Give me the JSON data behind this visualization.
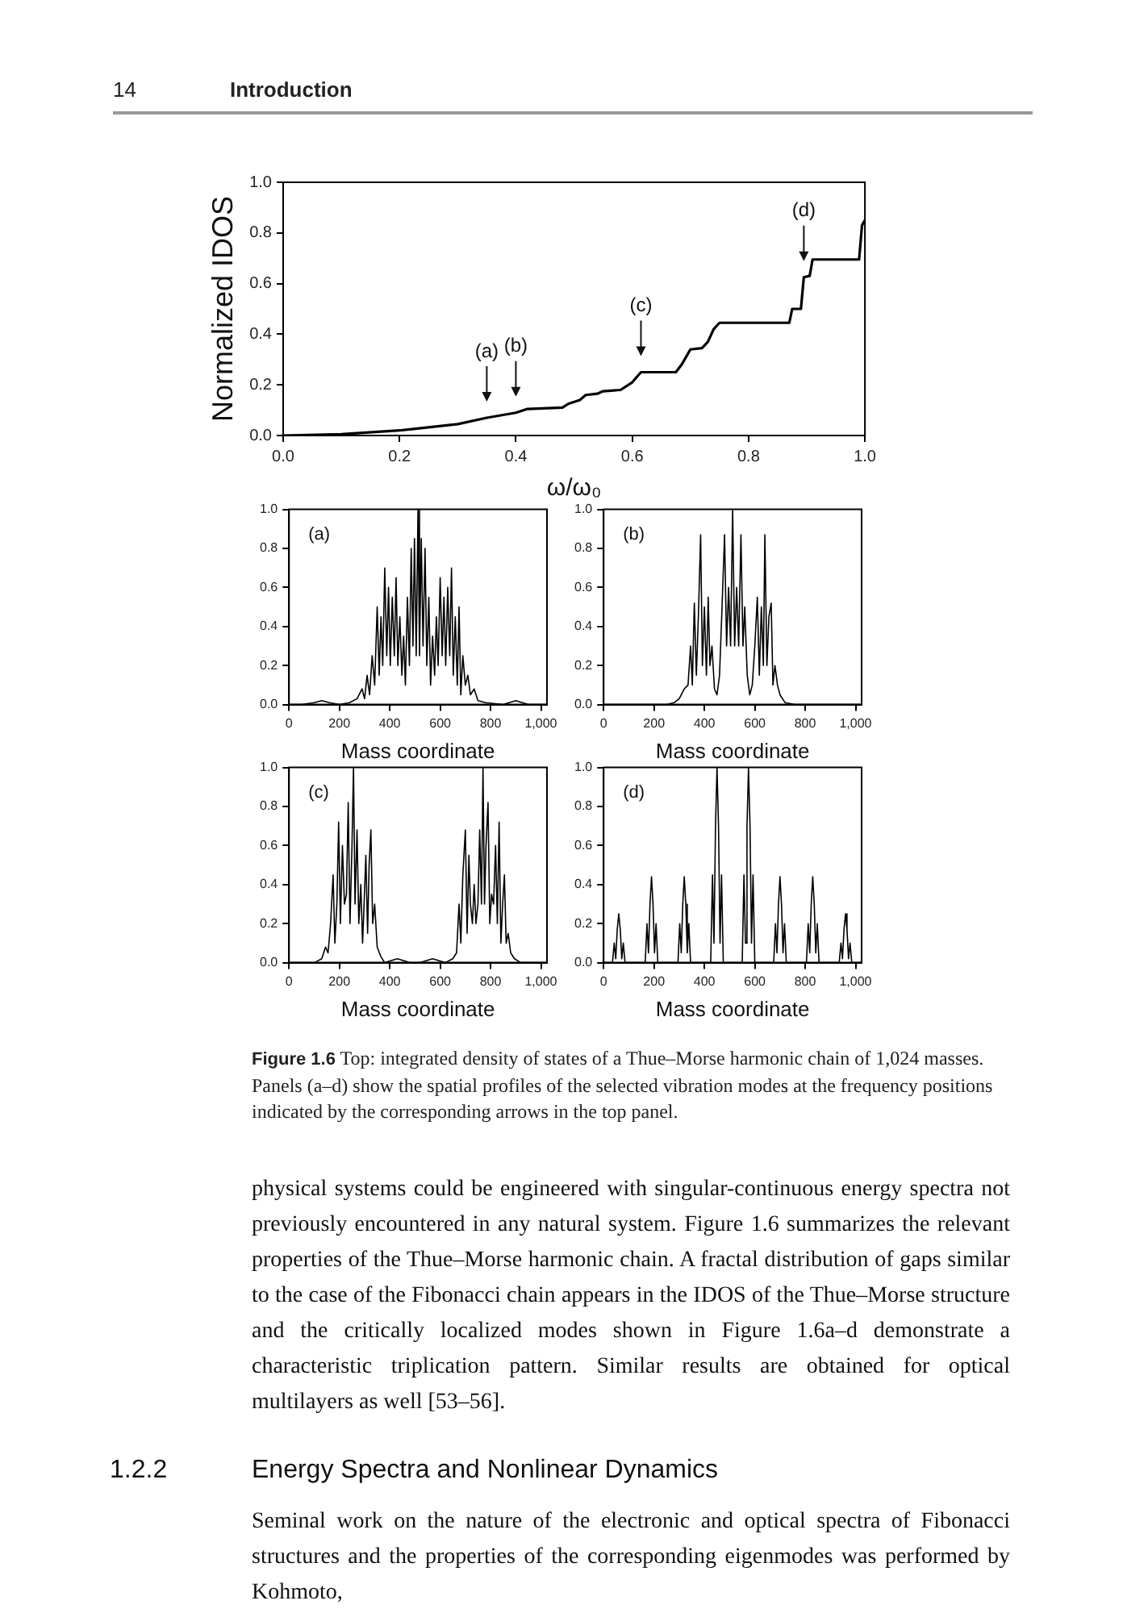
{
  "chart_data": [
    {
      "type": "other",
      "annotations": [
        "14",
        "Introduction"
      ]
    },
    {
      "type": "line",
      "xlabel": "ω/ω₀",
      "ylabel": "Normalized IDOS",
      "xlim": [
        0,
        1
      ],
      "ylim": [
        0,
        1
      ],
      "marker": "none",
      "grid": false,
      "xticks": [
        {
          "value": 0,
          "label": "0.0"
        },
        {
          "value": 0.2,
          "label": "0.2"
        },
        {
          "value": 0.4,
          "label": "0.4"
        },
        {
          "value": 0.6,
          "label": "0.6"
        },
        {
          "value": 0.8,
          "label": "0.8"
        },
        {
          "value": 1,
          "label": "1.0"
        }
      ],
      "yticks": [
        {
          "value": 0,
          "label": "0.0"
        },
        {
          "value": 0.2,
          "label": "0.2"
        },
        {
          "value": 0.4,
          "label": "0.4"
        },
        {
          "value": 0.6,
          "label": "0.6"
        },
        {
          "value": 0.8,
          "label": "0.8"
        },
        {
          "value": 1,
          "label": "1.0"
        }
      ],
      "series": [
        {
          "color": "#000000",
          "x": [
            0,
            0.1,
            0.2,
            0.3,
            0.35,
            0.4,
            0.42,
            0.48,
            0.49,
            0.51,
            0.52,
            0.54,
            0.55,
            0.58,
            0.6,
            0.615,
            0.675,
            0.685,
            0.7,
            0.72,
            0.73,
            0.74,
            0.75,
            0.87,
            0.875,
            0.89,
            0.895,
            0.905,
            0.91,
            0.99,
            0.995,
            1
          ],
          "values": [
            0,
            0.005,
            0.02,
            0.045,
            0.07,
            0.09,
            0.105,
            0.11,
            0.125,
            0.14,
            0.16,
            0.165,
            0.175,
            0.18,
            0.21,
            0.25,
            0.25,
            0.28,
            0.34,
            0.345,
            0.37,
            0.42,
            0.445,
            0.445,
            0.5,
            0.5,
            0.625,
            0.63,
            0.695,
            0.695,
            0.83,
            0.85
          ]
        }
      ],
      "annotations": [
        {
          "text": "(a)",
          "x": 0.35,
          "y": 0.07
        },
        {
          "text": "(b)",
          "x": 0.4,
          "y": 0.09
        },
        {
          "text": "(c)",
          "x": 0.615,
          "y": 0.25
        },
        {
          "text": "(d)",
          "x": 0.895,
          "y": 0.625
        }
      ]
    },
    {
      "type": "line",
      "xlabel": "Mass coordinate",
      "xlim": [
        0,
        1024
      ],
      "ylim": [
        0,
        1
      ],
      "marker": "none",
      "grid": false,
      "xticks": [
        0,
        200,
        400,
        600,
        800,
        {
          "value": 1000,
          "label": "1,000"
        }
      ],
      "yticks": [
        {
          "value": 0,
          "label": "0.0"
        },
        {
          "value": 0.2,
          "label": "0.2"
        },
        {
          "value": 0.4,
          "label": "0.4"
        },
        {
          "value": 0.6,
          "label": "0.6"
        },
        {
          "value": 0.8,
          "label": "0.8"
        },
        {
          "value": 1,
          "label": "1.0"
        }
      ],
      "series": [
        {
          "color": "#000000",
          "x": [
            0,
            50,
            100,
            130,
            160,
            200,
            240,
            270,
            290,
            300,
            310,
            320,
            330,
            340,
            350,
            358,
            365,
            372,
            380,
            388,
            395,
            402,
            410,
            418,
            425,
            432,
            440,
            448,
            455,
            462,
            470,
            478,
            485,
            492,
            498,
            505,
            512,
            518,
            525,
            532,
            540,
            547,
            555,
            562,
            570,
            578,
            585,
            592,
            600,
            608,
            615,
            622,
            630,
            638,
            645,
            652,
            660,
            668,
            675,
            682,
            690,
            700,
            710,
            720,
            735,
            750,
            780,
            850,
            900,
            950,
            1024
          ],
          "values": [
            0,
            0,
            0.01,
            0.02,
            0.01,
            0,
            0.01,
            0.03,
            0.08,
            0.03,
            0.15,
            0.05,
            0.25,
            0.1,
            0.5,
            0.15,
            0.45,
            0.2,
            0.7,
            0.25,
            0.6,
            0.2,
            0.55,
            0.25,
            0.65,
            0.2,
            0.45,
            0.15,
            0.35,
            0.1,
            0.55,
            0.2,
            0.8,
            0.3,
            0.85,
            0.25,
            1.0,
            0.25,
            0.85,
            0.3,
            0.8,
            0.2,
            0.55,
            0.1,
            0.35,
            0.15,
            0.45,
            0.2,
            0.65,
            0.25,
            0.55,
            0.2,
            0.6,
            0.25,
            0.7,
            0.15,
            0.45,
            0.1,
            0.5,
            0.05,
            0.25,
            0.1,
            0.15,
            0.05,
            0.08,
            0.02,
            0.01,
            0,
            0.02,
            0,
            0
          ]
        }
      ],
      "annotations": [
        "(a)"
      ]
    },
    {
      "type": "line",
      "xlabel": "Mass coordinate",
      "xlim": [
        0,
        1024
      ],
      "ylim": [
        0,
        1
      ],
      "marker": "none",
      "grid": false,
      "xticks": [
        0,
        200,
        400,
        600,
        800,
        {
          "value": 1000,
          "label": "1,000"
        }
      ],
      "yticks": [
        {
          "value": 0,
          "label": "0.0"
        },
        {
          "value": 0.2,
          "label": "0.2"
        },
        {
          "value": 0.4,
          "label": "0.4"
        },
        {
          "value": 0.6,
          "label": "0.6"
        },
        {
          "value": 0.8,
          "label": "0.8"
        },
        {
          "value": 1,
          "label": "1.0"
        }
      ],
      "series": [
        {
          "color": "#000000",
          "x": [
            0,
            250,
            280,
            300,
            320,
            335,
            345,
            352,
            360,
            368,
            376,
            385,
            392,
            400,
            408,
            415,
            422,
            430,
            440,
            450,
            460,
            470,
            480,
            488,
            496,
            504,
            512,
            520,
            528,
            536,
            545,
            553,
            560,
            570,
            580,
            590,
            600,
            610,
            618,
            626,
            634,
            640,
            648,
            656,
            665,
            672,
            680,
            690,
            700,
            720,
            760,
            1024
          ],
          "values": [
            0,
            0,
            0.01,
            0.03,
            0.08,
            0.1,
            0.3,
            0.1,
            0.52,
            0.15,
            0.45,
            0.87,
            0.2,
            0.5,
            0.15,
            0.55,
            0.2,
            0.3,
            0.08,
            0.05,
            0.15,
            0.5,
            0.87,
            0.3,
            0.6,
            0.3,
            1.0,
            0.3,
            0.6,
            0.3,
            0.87,
            0.3,
            0.5,
            0.15,
            0.05,
            0.1,
            0.3,
            0.55,
            0.15,
            0.5,
            0.2,
            0.87,
            0.2,
            0.45,
            0.52,
            0.1,
            0.2,
            0.1,
            0.05,
            0.01,
            0,
            0
          ]
        }
      ],
      "annotations": [
        "(b)"
      ]
    },
    {
      "type": "line",
      "xlabel": "Mass coordinate",
      "xlim": [
        0,
        1024
      ],
      "ylim": [
        0,
        1
      ],
      "marker": "none",
      "grid": false,
      "xticks": [
        0,
        200,
        400,
        600,
        800,
        {
          "value": 1000,
          "label": "1,000"
        }
      ],
      "yticks": [
        {
          "value": 0,
          "label": "0.0"
        },
        {
          "value": 0.2,
          "label": "0.2"
        },
        {
          "value": 0.4,
          "label": "0.4"
        },
        {
          "value": 0.6,
          "label": "0.6"
        },
        {
          "value": 0.8,
          "label": "0.8"
        },
        {
          "value": 1,
          "label": "1.0"
        }
      ],
      "series": [
        {
          "color": "#000000",
          "x": [
            0,
            100,
            130,
            145,
            155,
            165,
            175,
            182,
            190,
            197,
            204,
            212,
            220,
            228,
            235,
            242,
            250,
            256,
            262,
            270,
            277,
            285,
            292,
            298,
            305,
            312,
            318,
            325,
            332,
            340,
            350,
            365,
            380,
            430,
            480,
            520,
            570,
            620,
            650,
            665,
            675,
            682,
            690,
            700,
            707,
            714,
            720,
            728,
            735,
            742,
            750,
            757,
            764,
            770,
            776,
            782,
            790,
            797,
            804,
            812,
            820,
            827,
            834,
            841,
            848,
            855,
            862,
            870,
            880,
            895,
            920,
            1024
          ],
          "values": [
            0,
            0,
            0.02,
            0.08,
            0.05,
            0.2,
            0.45,
            0.1,
            0.3,
            0.72,
            0.2,
            0.6,
            0.3,
            0.35,
            0.82,
            0.2,
            0.6,
            1.0,
            0.3,
            0.68,
            0.2,
            0.4,
            0.1,
            0.3,
            0.55,
            0.15,
            0.5,
            0.68,
            0.2,
            0.3,
            0.08,
            0.03,
            0,
            0.02,
            0,
            0,
            0.02,
            0,
            0.02,
            0.05,
            0.3,
            0.1,
            0.45,
            0.68,
            0.15,
            0.55,
            0.3,
            0.2,
            0.4,
            0.2,
            0.3,
            0.68,
            0.3,
            1.0,
            0.3,
            0.6,
            0.82,
            0.2,
            0.35,
            0.3,
            0.6,
            0.2,
            0.72,
            0.1,
            0.3,
            0.45,
            0.1,
            0.15,
            0.05,
            0.02,
            0,
            0
          ]
        }
      ],
      "annotations": [
        "(c)"
      ]
    },
    {
      "type": "line",
      "xlabel": "Mass coordinate",
      "xlim": [
        0,
        1024
      ],
      "ylim": [
        0,
        1
      ],
      "marker": "none",
      "grid": false,
      "xticks": [
        0,
        200,
        400,
        600,
        800,
        {
          "value": 1000,
          "label": "1,000"
        }
      ],
      "yticks": [
        {
          "value": 0,
          "label": "0.0"
        },
        {
          "value": 0.2,
          "label": "0.2"
        },
        {
          "value": 0.4,
          "label": "0.4"
        },
        {
          "value": 0.6,
          "label": "0.6"
        },
        {
          "value": 0.8,
          "label": "0.8"
        },
        {
          "value": 1,
          "label": "1.0"
        }
      ],
      "series": [
        {
          "color": "#000000",
          "x": [
            0,
            35,
            42,
            48,
            54,
            60,
            66,
            72,
            78,
            85,
            165,
            172,
            178,
            184,
            190,
            196,
            202,
            208,
            215,
            295,
            302,
            308,
            314,
            320,
            326,
            332,
            338,
            345,
            425,
            432,
            438,
            444,
            450,
            456,
            462,
            468,
            475,
            550,
            557,
            563,
            569,
            575,
            581,
            587,
            593,
            600,
            675,
            682,
            688,
            694,
            700,
            706,
            712,
            718,
            725,
            805,
            812,
            818,
            824,
            830,
            836,
            842,
            848,
            855,
            935,
            942,
            948,
            954,
            960,
            966,
            972,
            978,
            985,
            1024
          ],
          "values": [
            0,
            0,
            0.1,
            0.02,
            0.17,
            0.25,
            0.17,
            0.02,
            0.1,
            0,
            0,
            0.2,
            0.05,
            0.3,
            0.44,
            0.3,
            0.05,
            0.2,
            0,
            0,
            0.2,
            0.05,
            0.3,
            0.44,
            0.3,
            0.05,
            0.2,
            0,
            0,
            0.45,
            0.1,
            0.7,
            1.0,
            0.7,
            0.1,
            0.45,
            0,
            0,
            0.45,
            0.1,
            0.7,
            1.0,
            0.7,
            0.1,
            0.45,
            0,
            0,
            0.2,
            0.05,
            0.3,
            0.44,
            0.3,
            0.05,
            0.2,
            0,
            0,
            0.2,
            0.05,
            0.3,
            0.44,
            0.3,
            0.05,
            0.2,
            0,
            0,
            0.1,
            0.02,
            0.17,
            0.25,
            0.17,
            0.02,
            0.1,
            0,
            0
          ]
        }
      ],
      "annotations": [
        "(d)"
      ]
    },
    {
      "type": "other",
      "title": "Figure 1.6",
      "subtitle": "Top: integrated density of states of a Thue–Morse harmonic chain of 1,024 masses. Panels (a–d) show the spatial profiles of the selected vibration modes at the frequency positions indicated by the corresponding arrows in the top panel.",
      "annotations": [
        "physical systems could be engineered with singular-continuous energy spectra not previously encountered in any natural system. Figure 1.6 summarizes the relevant properties of the Thue–Morse harmonic chain. A fractal distribution of gaps similar to the case of the Fibonacci chain appears in the IDOS of the Thue–Morse structure and the critically localized modes shown in Figure 1.6a–d demonstrate a characteristic triplication pattern. Similar results are obtained for optical multilayers as well [53–56].",
        "1.2.2",
        "Energy Spectra and Nonlinear Dynamics",
        "Seminal work on the nature of the electronic and optical spectra of Fibonacci structures and the properties of the corresponding eigenmodes was performed by Kohmoto,"
      ]
    }
  ]
}
